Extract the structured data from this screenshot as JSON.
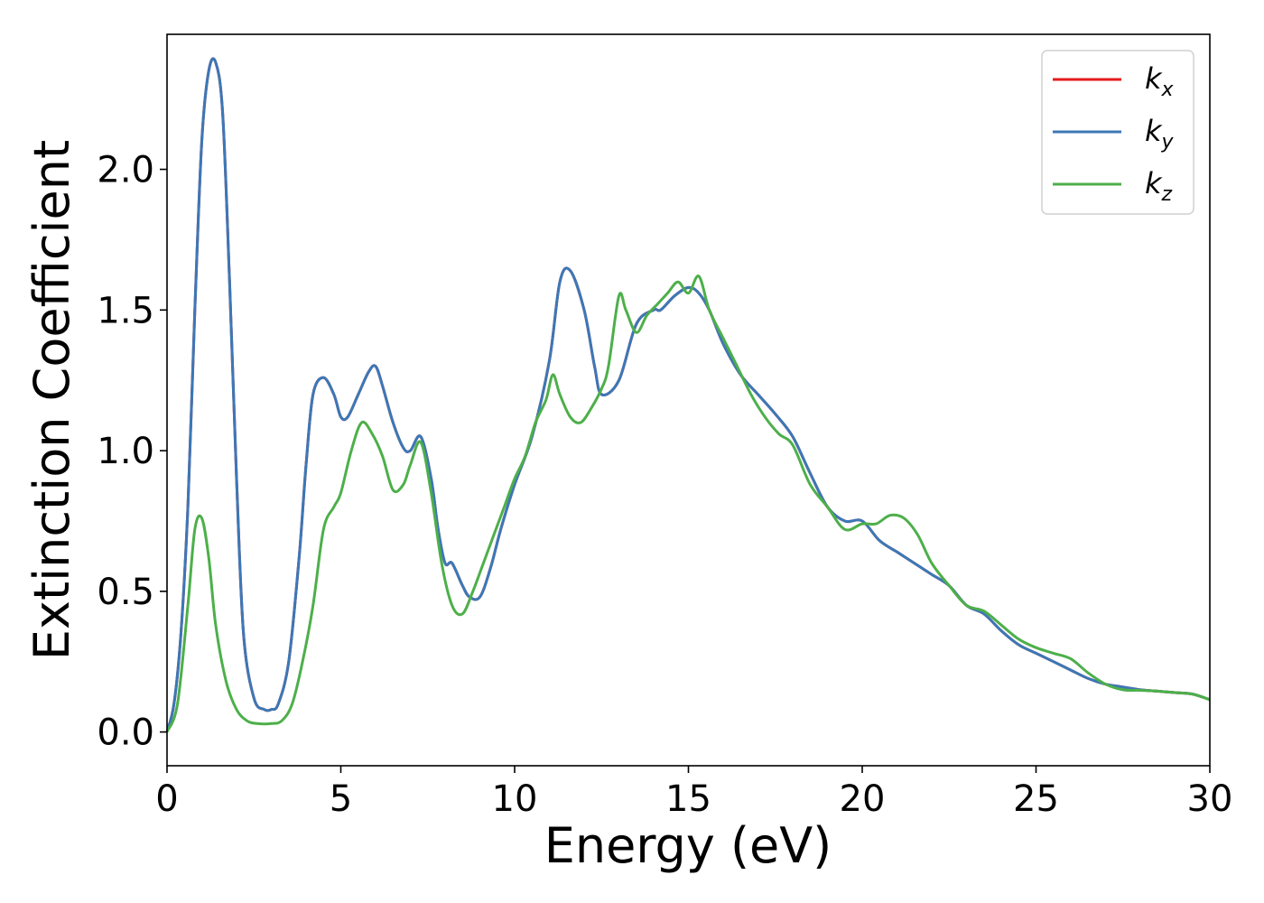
{
  "chart_data": {
    "type": "line",
    "xlabel": "Energy (eV)",
    "ylabel": "Extinction Coefficient",
    "xlim": [
      0,
      30
    ],
    "ylim": [
      -0.12,
      2.48
    ],
    "xticks": [
      0,
      5,
      10,
      15,
      20,
      25,
      30
    ],
    "xtick_labels": [
      "0",
      "5",
      "10",
      "15",
      "20",
      "25",
      "30"
    ],
    "yticks": [
      0.0,
      0.5,
      1.0,
      1.5,
      2.0
    ],
    "ytick_labels": [
      "0.0",
      "0.5",
      "1.0",
      "1.5",
      "2.0"
    ],
    "grid": false,
    "legend_position": "top-right",
    "series": [
      {
        "name": "k_x",
        "legend_base": "k",
        "legend_sub": "x",
        "color": "#e41a1c",
        "x": [
          0,
          0.2,
          0.4,
          0.6,
          0.8,
          1.0,
          1.2,
          1.4,
          1.6,
          1.8,
          2.0,
          2.2,
          2.5,
          2.8,
          3.0,
          3.2,
          3.5,
          3.8,
          4.0,
          4.2,
          4.5,
          4.8,
          5.0,
          5.2,
          5.5,
          5.8,
          6.0,
          6.2,
          6.5,
          6.8,
          7.0,
          7.3,
          7.6,
          7.8,
          8.0,
          8.2,
          8.5,
          8.7,
          9.0,
          9.3,
          9.6,
          10.0,
          10.5,
          11.0,
          11.3,
          11.6,
          12.0,
          12.3,
          12.5,
          13.0,
          13.5,
          14.0,
          14.2,
          14.6,
          15.0,
          15.3,
          15.6,
          16.0,
          16.5,
          17.0,
          17.5,
          18.0,
          18.5,
          19.0,
          19.5,
          20.0,
          20.5,
          21.0,
          21.5,
          22.0,
          22.5,
          23.0,
          23.5,
          24.0,
          24.5,
          25.0,
          25.5,
          26.0,
          26.5,
          27.0,
          27.5,
          28.0,
          28.5,
          29.0,
          29.5,
          30.0
        ],
        "y": [
          0.0,
          0.1,
          0.35,
          0.8,
          1.5,
          2.1,
          2.35,
          2.38,
          2.2,
          1.6,
          0.9,
          0.35,
          0.12,
          0.08,
          0.08,
          0.1,
          0.25,
          0.62,
          0.95,
          1.2,
          1.26,
          1.2,
          1.12,
          1.12,
          1.2,
          1.28,
          1.3,
          1.23,
          1.1,
          1.01,
          1.0,
          1.05,
          0.9,
          0.72,
          0.6,
          0.6,
          0.52,
          0.48,
          0.48,
          0.58,
          0.72,
          0.88,
          1.05,
          1.32,
          1.6,
          1.64,
          1.5,
          1.3,
          1.2,
          1.25,
          1.45,
          1.5,
          1.5,
          1.55,
          1.58,
          1.56,
          1.5,
          1.38,
          1.27,
          1.2,
          1.13,
          1.05,
          0.92,
          0.8,
          0.75,
          0.75,
          0.68,
          0.64,
          0.6,
          0.56,
          0.52,
          0.45,
          0.42,
          0.36,
          0.31,
          0.28,
          0.25,
          0.22,
          0.19,
          0.17,
          0.16,
          0.15,
          0.145,
          0.14,
          0.135,
          0.115
        ]
      },
      {
        "name": "k_y",
        "legend_base": "k",
        "legend_sub": "y",
        "color": "#3b78b7",
        "x": [
          0,
          0.2,
          0.4,
          0.6,
          0.8,
          1.0,
          1.2,
          1.4,
          1.6,
          1.8,
          2.0,
          2.2,
          2.5,
          2.8,
          3.0,
          3.2,
          3.5,
          3.8,
          4.0,
          4.2,
          4.5,
          4.8,
          5.0,
          5.2,
          5.5,
          5.8,
          6.0,
          6.2,
          6.5,
          6.8,
          7.0,
          7.3,
          7.6,
          7.8,
          8.0,
          8.2,
          8.5,
          8.7,
          9.0,
          9.3,
          9.6,
          10.0,
          10.5,
          11.0,
          11.3,
          11.6,
          12.0,
          12.3,
          12.5,
          13.0,
          13.5,
          14.0,
          14.2,
          14.6,
          15.0,
          15.3,
          15.6,
          16.0,
          16.5,
          17.0,
          17.5,
          18.0,
          18.5,
          19.0,
          19.5,
          20.0,
          20.5,
          21.0,
          21.5,
          22.0,
          22.5,
          23.0,
          23.5,
          24.0,
          24.5,
          25.0,
          25.5,
          26.0,
          26.5,
          27.0,
          27.5,
          28.0,
          28.5,
          29.0,
          29.5,
          30.0
        ],
        "y": [
          0.0,
          0.1,
          0.35,
          0.8,
          1.5,
          2.1,
          2.35,
          2.38,
          2.2,
          1.6,
          0.9,
          0.35,
          0.12,
          0.08,
          0.08,
          0.1,
          0.25,
          0.62,
          0.95,
          1.2,
          1.26,
          1.2,
          1.12,
          1.12,
          1.2,
          1.28,
          1.3,
          1.23,
          1.1,
          1.01,
          1.0,
          1.05,
          0.9,
          0.72,
          0.6,
          0.6,
          0.52,
          0.48,
          0.48,
          0.58,
          0.72,
          0.88,
          1.05,
          1.32,
          1.6,
          1.64,
          1.5,
          1.3,
          1.2,
          1.25,
          1.45,
          1.5,
          1.5,
          1.55,
          1.58,
          1.56,
          1.5,
          1.38,
          1.27,
          1.2,
          1.13,
          1.05,
          0.92,
          0.8,
          0.75,
          0.75,
          0.68,
          0.64,
          0.6,
          0.56,
          0.52,
          0.45,
          0.42,
          0.36,
          0.31,
          0.28,
          0.25,
          0.22,
          0.19,
          0.17,
          0.16,
          0.15,
          0.145,
          0.14,
          0.135,
          0.115
        ]
      },
      {
        "name": "k_z",
        "legend_base": "k",
        "legend_sub": "z",
        "color": "#4daf4a",
        "x": [
          0,
          0.3,
          0.6,
          0.8,
          1.0,
          1.2,
          1.4,
          1.7,
          2.0,
          2.3,
          2.6,
          3.0,
          3.3,
          3.6,
          3.9,
          4.2,
          4.5,
          4.8,
          5.0,
          5.3,
          5.6,
          5.9,
          6.2,
          6.5,
          6.8,
          7.0,
          7.3,
          7.6,
          7.9,
          8.2,
          8.5,
          8.8,
          9.1,
          9.4,
          9.7,
          10.0,
          10.3,
          10.6,
          10.9,
          11.1,
          11.3,
          11.6,
          11.9,
          12.2,
          12.5,
          12.7,
          13.0,
          13.2,
          13.5,
          13.8,
          14.1,
          14.4,
          14.7,
          15.0,
          15.3,
          15.6,
          16.0,
          16.4,
          16.8,
          17.2,
          17.6,
          18.0,
          18.5,
          19.0,
          19.5,
          20.0,
          20.4,
          20.8,
          21.2,
          21.6,
          22.0,
          22.5,
          23.0,
          23.5,
          24.0,
          24.5,
          25.0,
          25.5,
          26.0,
          26.5,
          27.0,
          27.5,
          28.0,
          28.5,
          29.0,
          29.5,
          30.0
        ],
        "y": [
          0.0,
          0.1,
          0.45,
          0.72,
          0.76,
          0.62,
          0.38,
          0.18,
          0.08,
          0.04,
          0.03,
          0.03,
          0.04,
          0.1,
          0.25,
          0.45,
          0.72,
          0.8,
          0.85,
          1.0,
          1.1,
          1.06,
          0.98,
          0.86,
          0.88,
          0.95,
          1.03,
          0.85,
          0.6,
          0.45,
          0.42,
          0.5,
          0.6,
          0.7,
          0.8,
          0.9,
          0.98,
          1.1,
          1.18,
          1.27,
          1.2,
          1.12,
          1.1,
          1.15,
          1.22,
          1.3,
          1.55,
          1.5,
          1.42,
          1.48,
          1.52,
          1.56,
          1.6,
          1.56,
          1.62,
          1.5,
          1.4,
          1.3,
          1.2,
          1.12,
          1.06,
          1.02,
          0.88,
          0.8,
          0.72,
          0.74,
          0.74,
          0.77,
          0.76,
          0.7,
          0.6,
          0.52,
          0.45,
          0.43,
          0.38,
          0.33,
          0.3,
          0.28,
          0.26,
          0.21,
          0.17,
          0.15,
          0.148,
          0.145,
          0.14,
          0.135,
          0.115
        ]
      }
    ]
  }
}
